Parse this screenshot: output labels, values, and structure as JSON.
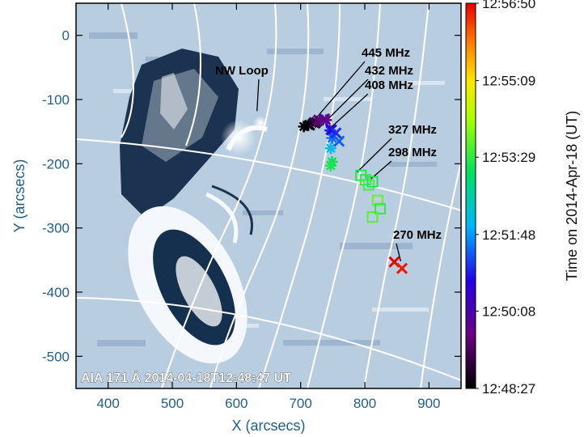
{
  "chart_data": {
    "type": "scatter",
    "title": "",
    "xlabel": "X (arcsecs)",
    "ylabel": "Y (arcsecs)",
    "xlim": [
      350,
      950
    ],
    "ylim": [
      -550,
      50
    ],
    "x_ticks": [
      "400",
      "500",
      "600",
      "700",
      "800",
      "900"
    ],
    "y_ticks": [
      "0",
      "-100",
      "-200",
      "-300",
      "-400",
      "-500"
    ],
    "background_image_caption": "AIA 171 Å 2014-04-18T12:48:47 UT",
    "colorbar": {
      "label": "Time on 2014-Apr-18 (UT)",
      "ticks": [
        "12:48:27",
        "12:50:08",
        "12:51:48",
        "12:53:29",
        "12:55:09",
        "12:56:50"
      ]
    },
    "annotations": [
      {
        "text": "NW Loop",
        "x": 632,
        "y": -118
      },
      {
        "text": "445 MHz",
        "x": 712,
        "y": -143
      },
      {
        "text": "432 MHz",
        "x": 728,
        "y": -145
      },
      {
        "text": "408 MHz",
        "x": 740,
        "y": -150
      },
      {
        "text": "327 MHz",
        "x": 788,
        "y": -213
      },
      {
        "text": "298 MHz",
        "x": 808,
        "y": -225
      },
      {
        "text": "270 MHz",
        "x": 856,
        "y": -352
      }
    ],
    "series": [
      {
        "marker": "star",
        "points": [
          {
            "x": 705,
            "y": -142,
            "t": "12:48:27"
          },
          {
            "x": 712,
            "y": -140,
            "t": "12:48:27"
          },
          {
            "x": 718,
            "y": -137,
            "t": "12:48:45"
          },
          {
            "x": 724,
            "y": -134,
            "t": "12:49:05"
          },
          {
            "x": 730,
            "y": -133,
            "t": "12:49:20"
          },
          {
            "x": 740,
            "y": -132,
            "t": "12:49:35"
          },
          {
            "x": 746,
            "y": -148,
            "t": "12:51:00"
          },
          {
            "x": 749,
            "y": -160,
            "t": "12:51:30"
          },
          {
            "x": 747,
            "y": -176,
            "t": "12:52:10"
          },
          {
            "x": 749,
            "y": -197,
            "t": "12:53:10"
          },
          {
            "x": 747,
            "y": -203,
            "t": "12:53:20"
          }
        ]
      },
      {
        "marker": "x",
        "points": [
          {
            "x": 714,
            "y": -140,
            "t": "12:48:27"
          },
          {
            "x": 721,
            "y": -136,
            "t": "12:49:00"
          },
          {
            "x": 728,
            "y": -132,
            "t": "12:49:30"
          },
          {
            "x": 737,
            "y": -130,
            "t": "12:49:55"
          },
          {
            "x": 748,
            "y": -147,
            "t": "12:50:45"
          },
          {
            "x": 755,
            "y": -152,
            "t": "12:51:05"
          },
          {
            "x": 760,
            "y": -165,
            "t": "12:51:25"
          },
          {
            "x": 846,
            "y": -353,
            "t": "12:56:50"
          },
          {
            "x": 858,
            "y": -363,
            "t": "12:56:40"
          }
        ]
      },
      {
        "marker": "square",
        "points": [
          {
            "x": 794,
            "y": -218,
            "t": "12:53:25"
          },
          {
            "x": 801,
            "y": -225,
            "t": "12:53:30"
          },
          {
            "x": 806,
            "y": -233,
            "t": "12:53:40"
          },
          {
            "x": 812,
            "y": -228,
            "t": "12:53:20"
          },
          {
            "x": 820,
            "y": -257,
            "t": "12:53:50"
          },
          {
            "x": 824,
            "y": -270,
            "t": "12:53:30"
          },
          {
            "x": 812,
            "y": -283,
            "t": "12:53:45"
          }
        ]
      }
    ]
  }
}
